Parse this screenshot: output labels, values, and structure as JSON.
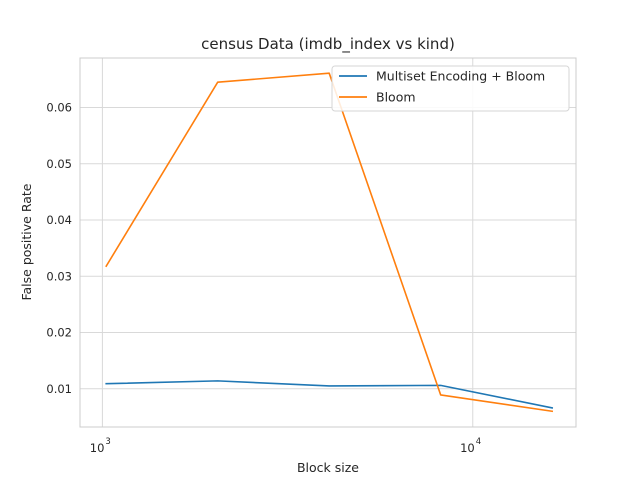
{
  "chart_data": {
    "type": "line",
    "title": "census Data (imdb_index vs kind)",
    "xlabel": "Block size",
    "ylabel": "False positive Rate",
    "xscale": "log",
    "xlim": [
      870,
      19000
    ],
    "ylim": [
      0.0032,
      0.0688
    ],
    "grid": true,
    "legend_position": "top-right",
    "x_ticks": [
      {
        "value": 1000,
        "base": "10",
        "exp": "3"
      },
      {
        "value": 10000,
        "base": "10",
        "exp": "4"
      }
    ],
    "y_ticks": [
      {
        "value": 0.01,
        "label": "0.01"
      },
      {
        "value": 0.02,
        "label": "0.02"
      },
      {
        "value": 0.03,
        "label": "0.03"
      },
      {
        "value": 0.04,
        "label": "0.04"
      },
      {
        "value": 0.05,
        "label": "0.05"
      },
      {
        "value": 0.06,
        "label": "0.06"
      }
    ],
    "x": [
      1024,
      2048,
      4096,
      8192,
      16384
    ],
    "series": [
      {
        "name": "Multiset Encoding + Bloom",
        "color": "#1f77b4",
        "values": [
          0.0109,
          0.0114,
          0.0105,
          0.0106,
          0.0066
        ]
      },
      {
        "name": "Bloom",
        "color": "#ff7f0e",
        "values": [
          0.0318,
          0.0645,
          0.0661,
          0.0089,
          0.006
        ]
      }
    ]
  }
}
